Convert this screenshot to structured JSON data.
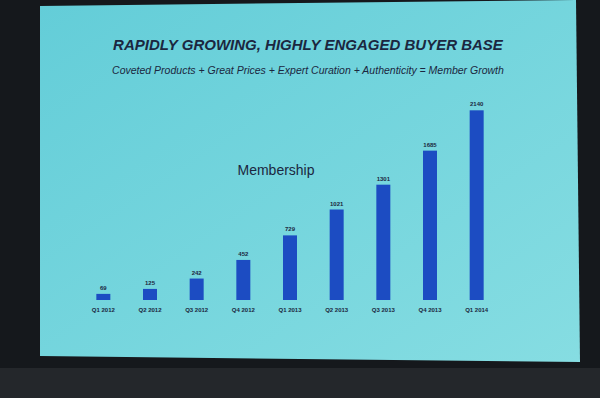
{
  "chart_data": {
    "type": "bar",
    "title": "RAPIDLY GROWING, HIGHLY ENGAGED BUYER BASE",
    "subtitle": "Coveted Products + Great Prices + Expert Curation + Authenticity = Member Growth",
    "annotations": [
      "Membership"
    ],
    "categories": [
      "Q1 2012",
      "Q2 2012",
      "Q3 2012",
      "Q4 2012",
      "Q1 2013",
      "Q2 2013",
      "Q3 2013",
      "Q4 2013",
      "Q1 2014"
    ],
    "values": [
      69,
      125,
      242,
      452,
      729,
      1021,
      1301,
      1685,
      2140
    ],
    "color": "#1c4cc2",
    "ylim": [
      0,
      2200
    ],
    "grid": false,
    "data_labels": true,
    "tick_labels": "x"
  }
}
